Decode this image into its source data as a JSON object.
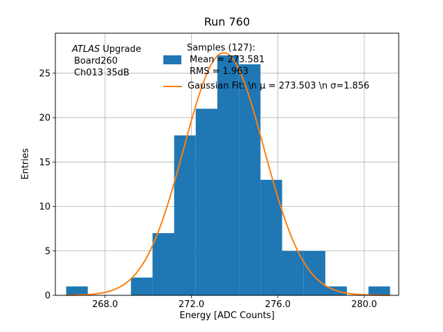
{
  "chart_data": {
    "type": "bar",
    "subtype": "histogram_with_gaussian_fit",
    "title": "Run 760",
    "xlabel": "Energy [ADC Counts]",
    "ylabel": "Entries",
    "xlim": [
      265.7,
      281.6
    ],
    "ylim": [
      0,
      29.5
    ],
    "x_ticks": [
      268.0,
      272.0,
      276.0,
      280.0
    ],
    "x_tick_labels": [
      "268.0",
      "272.0",
      "276.0",
      "280.0"
    ],
    "y_ticks": [
      0,
      5,
      10,
      15,
      20,
      25
    ],
    "y_tick_labels": [
      "0",
      "5",
      "10",
      "15",
      "20",
      "25"
    ],
    "grid": true,
    "legend_position": "upper center",
    "bar_color": "#1f77b4",
    "line_color": "#ff7f0e",
    "grid_color": "#b0b0b0",
    "bins": {
      "start": 266.2,
      "width": 1.0,
      "counts": [
        1,
        0,
        0,
        2,
        7,
        18,
        21,
        27,
        26,
        13,
        5,
        5,
        1,
        0,
        1
      ]
    },
    "samples_total": 127,
    "mean": 273.581,
    "rms": 1.963,
    "gaussian": {
      "amplitude": 27.3,
      "mu": 273.503,
      "sigma": 1.856,
      "x_range": [
        266.2,
        281.2
      ]
    }
  },
  "annotation": {
    "line1_italic": "ATLAS",
    "line1_rest": " Upgrade",
    "line2": "Board260",
    "line3": "Ch013 35dB"
  },
  "legend": {
    "samples_line1": "Samples (127):",
    "samples_line2": "Mean = 273.581",
    "samples_line3": "RMS = 1.963",
    "gaussian_label": "Gaussian Fit: \\n μ = 273.503 \\n σ=1.856"
  }
}
